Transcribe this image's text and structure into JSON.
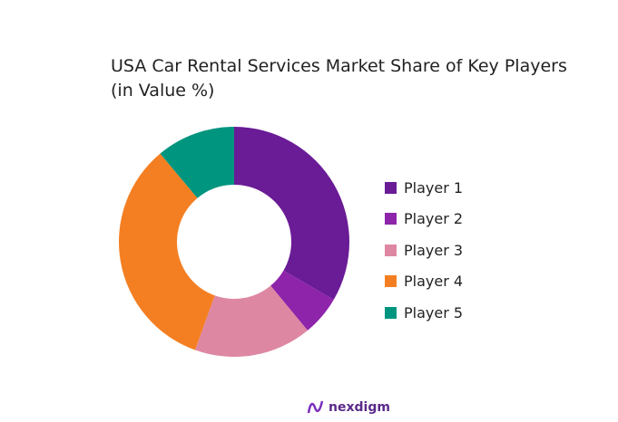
{
  "chart_data": {
    "type": "pie",
    "donut": true,
    "title_lines": [
      "USA Car Rental Services Market Share of Key Players",
      "(in Value %)"
    ],
    "categories": [
      "Player 1",
      "Player 2",
      "Player 3",
      "Player 4",
      "Player 5"
    ],
    "values": [
      33.4,
      5.6,
      16.5,
      33.4,
      11.1
    ],
    "unit": "%",
    "colors": [
      "#6a1b96",
      "#8e24aa",
      "#de87a2",
      "#f47f22",
      "#00957f"
    ],
    "legend_position": "right",
    "start_angle": "top, clockwise"
  },
  "logo": {
    "text": "nexdigm"
  }
}
